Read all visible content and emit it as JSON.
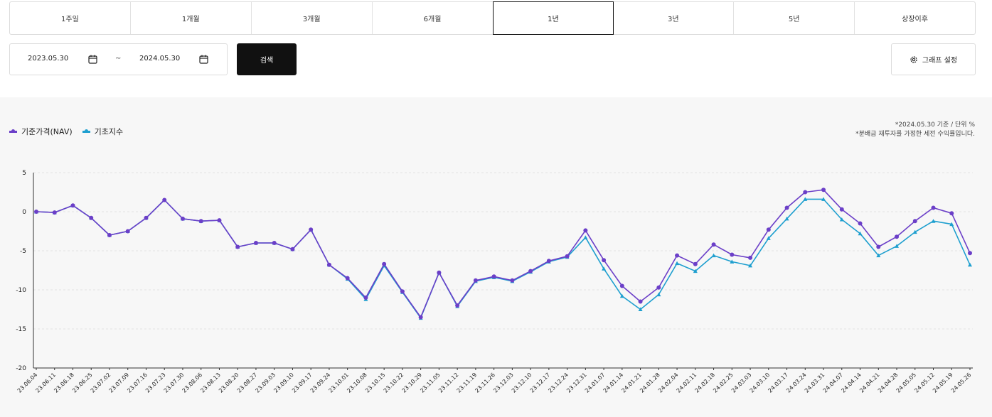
{
  "tabs": [
    "1주일",
    "1개월",
    "3개월",
    "6개월",
    "1년",
    "3년",
    "5년",
    "상장이후"
  ],
  "active_tab": 4,
  "date_range": {
    "start": "2023.05.30",
    "separator": "~",
    "end": "2024.05.30"
  },
  "search_label": "검색",
  "graph_settings_label": "그래프 설정",
  "legend": [
    {
      "label": "기준가격(NAV)",
      "color": "#6b3fc8"
    },
    {
      "label": "기초지수",
      "color": "#1e9fcf"
    }
  ],
  "note_lines": [
    "*2024.05.30 기준 / 단위 %",
    "*분배금 재투자를 가정한 세전 수익률입니다."
  ],
  "chart_data": {
    "type": "line",
    "ylim": [
      -20,
      5
    ],
    "yticks": [
      5,
      0,
      -5,
      -10,
      -15,
      -20
    ],
    "grid": true,
    "legend_position": "top-left",
    "x": [
      "23.06.04",
      "23.06.11",
      "23.06.18",
      "23.06.25",
      "23.07.02",
      "23.07.09",
      "23.07.16",
      "23.07.23",
      "23.07.30",
      "23.08.06",
      "23.08.13",
      "23.08.20",
      "23.08.27",
      "23.09.03",
      "23.09.10",
      "23.09.17",
      "23.09.24",
      "23.10.01",
      "23.10.08",
      "23.10.15",
      "23.10.22",
      "23.10.29",
      "23.11.05",
      "23.11.12",
      "23.11.19",
      "23.11.26",
      "23.12.03",
      "23.12.10",
      "23.12.17",
      "23.12.24",
      "23.12.31",
      "24.01.07",
      "24.01.14",
      "24.01.21",
      "24.01.28",
      "24.02.04",
      "24.02.11",
      "24.02.18",
      "24.02.25",
      "24.03.03",
      "24.03.10",
      "24.03.17",
      "24.03.24",
      "24.03.31",
      "24.04.07",
      "24.04.14",
      "24.04.21",
      "24.04.28",
      "24.05.05",
      "24.05.12",
      "24.05.19",
      "24.05.26"
    ],
    "series": [
      {
        "name": "기준가격(NAV)",
        "color": "#6b3fc8",
        "values": [
          0,
          -0.1,
          0.8,
          -0.8,
          -3.0,
          -2.5,
          -0.8,
          1.5,
          -0.9,
          -1.2,
          -1.1,
          -4.5,
          -4.0,
          -4.0,
          -4.8,
          -2.3,
          -6.8,
          -8.5,
          -11.0,
          -6.7,
          -10.2,
          -13.5,
          -7.8,
          -12.0,
          -8.8,
          -8.3,
          -8.8,
          -7.6,
          -6.3,
          -5.7,
          -2.4,
          -6.2,
          -9.5,
          -11.5,
          -9.7,
          -5.6,
          -6.7,
          -4.2,
          -5.5,
          -5.9,
          -2.3,
          0.5,
          2.5,
          2.8,
          0.3,
          -1.5,
          -4.5,
          -3.2,
          -1.2,
          0.5,
          -0.2,
          -5.3
        ]
      },
      {
        "name": "기초지수",
        "color": "#1e9fcf",
        "values": [
          0,
          -0.1,
          0.8,
          -0.8,
          -3.0,
          -2.5,
          -0.8,
          1.5,
          -0.9,
          -1.2,
          -1.1,
          -4.5,
          -4.0,
          -4.0,
          -4.8,
          -2.3,
          -6.8,
          -8.6,
          -11.2,
          -6.9,
          -10.3,
          -13.6,
          -7.8,
          -12.1,
          -8.9,
          -8.4,
          -8.9,
          -7.7,
          -6.4,
          -5.8,
          -3.3,
          -7.3,
          -10.8,
          -12.5,
          -10.6,
          -6.6,
          -7.6,
          -5.6,
          -6.4,
          -6.9,
          -3.4,
          -0.9,
          1.6,
          1.6,
          -1.0,
          -2.8,
          -5.6,
          -4.4,
          -2.6,
          -1.2,
          -1.6,
          -6.8
        ]
      }
    ]
  }
}
